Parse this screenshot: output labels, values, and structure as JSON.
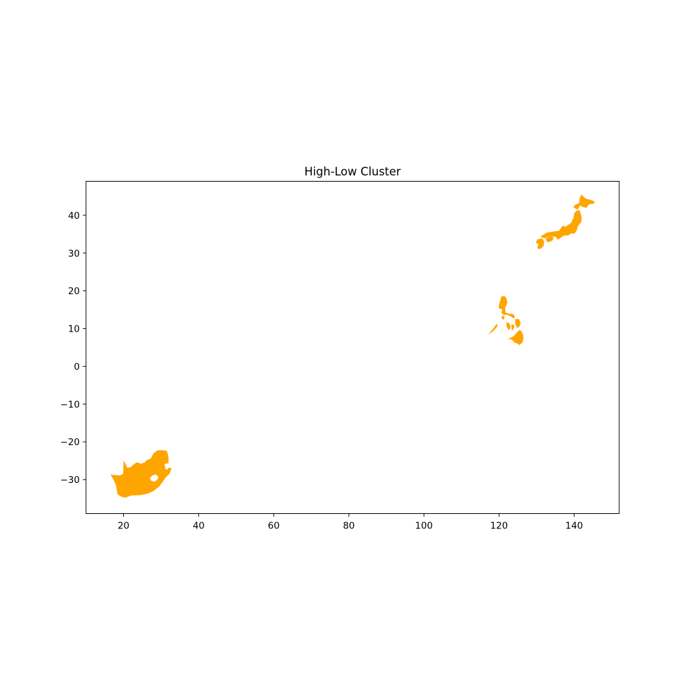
{
  "chart_data": {
    "type": "map",
    "title": "High-Low Cluster",
    "xlabel": "",
    "ylabel": "",
    "xlim": [
      10,
      152
    ],
    "ylim": [
      -39,
      49
    ],
    "xticks": [
      20,
      40,
      60,
      80,
      100,
      120,
      140
    ],
    "yticks": [
      -30,
      -20,
      -10,
      0,
      10,
      20,
      30,
      40
    ],
    "grid": false,
    "fill_color": "#FFA500",
    "regions": [
      {
        "name": "South Africa",
        "rings": [
          [
            [
              16.5,
              -28.6
            ],
            [
              17.2,
              -29.8
            ],
            [
              18.0,
              -31.5
            ],
            [
              18.2,
              -32.8
            ],
            [
              18.4,
              -33.9
            ],
            [
              19.5,
              -34.6
            ],
            [
              20.5,
              -34.8
            ],
            [
              22.0,
              -34.2
            ],
            [
              24.5,
              -34.1
            ],
            [
              26.5,
              -33.7
            ],
            [
              28.0,
              -33.0
            ],
            [
              29.5,
              -31.8
            ],
            [
              30.5,
              -30.5
            ],
            [
              31.3,
              -29.3
            ],
            [
              32.2,
              -28.5
            ],
            [
              32.8,
              -27.0
            ],
            [
              32.0,
              -26.8
            ],
            [
              31.8,
              -27.3
            ],
            [
              31.2,
              -27.3
            ],
            [
              30.9,
              -26.0
            ],
            [
              31.5,
              -25.6
            ],
            [
              31.9,
              -25.9
            ],
            [
              32.0,
              -24.3
            ],
            [
              31.6,
              -22.5
            ],
            [
              31.0,
              -22.3
            ],
            [
              30.0,
              -22.2
            ],
            [
              29.0,
              -22.3
            ],
            [
              28.0,
              -23.0
            ],
            [
              27.2,
              -24.5
            ],
            [
              26.2,
              -24.8
            ],
            [
              25.6,
              -25.5
            ],
            [
              24.6,
              -25.8
            ],
            [
              23.5,
              -25.4
            ],
            [
              22.7,
              -26.0
            ],
            [
              21.7,
              -26.8
            ],
            [
              20.9,
              -26.8
            ],
            [
              20.6,
              -26.0
            ],
            [
              20.0,
              -24.9
            ],
            [
              19.9,
              -28.5
            ],
            [
              19.0,
              -28.9
            ],
            [
              18.2,
              -28.8
            ],
            [
              17.4,
              -28.8
            ],
            [
              16.5,
              -28.6
            ]
          ],
          [
            [
              27.0,
              -29.6
            ],
            [
              27.7,
              -28.9
            ],
            [
              28.6,
              -28.6
            ],
            [
              29.3,
              -29.3
            ],
            [
              29.0,
              -30.0
            ],
            [
              28.2,
              -30.6
            ],
            [
              27.4,
              -30.3
            ],
            [
              27.0,
              -29.6
            ]
          ]
        ]
      },
      {
        "name": "Philippines",
        "rings": [
          [
            [
              120.6,
              18.5
            ],
            [
              121.4,
              18.6
            ],
            [
              121.9,
              18.2
            ],
            [
              122.2,
              17.0
            ],
            [
              122.0,
              16.2
            ],
            [
              121.6,
              15.5
            ],
            [
              121.7,
              14.3
            ],
            [
              122.4,
              14.0
            ],
            [
              123.9,
              13.8
            ],
            [
              124.2,
              13.0
            ],
            [
              123.9,
              12.7
            ],
            [
              122.8,
              13.4
            ],
            [
              122.0,
              13.7
            ],
            [
              121.2,
              13.6
            ],
            [
              120.6,
              14.2
            ],
            [
              120.9,
              15.0
            ],
            [
              119.9,
              15.4
            ],
            [
              120.0,
              16.4
            ],
            [
              120.4,
              17.6
            ],
            [
              120.6,
              18.5
            ]
          ],
          [
            [
              121.9,
              7.0
            ],
            [
              122.7,
              7.4
            ],
            [
              123.6,
              7.8
            ],
            [
              124.1,
              8.2
            ],
            [
              124.7,
              8.9
            ],
            [
              125.4,
              9.6
            ],
            [
              125.9,
              9.4
            ],
            [
              126.4,
              8.4
            ],
            [
              126.5,
              7.2
            ],
            [
              126.2,
              6.3
            ],
            [
              125.4,
              5.6
            ],
            [
              125.0,
              6.0
            ],
            [
              124.2,
              6.2
            ],
            [
              123.6,
              6.9
            ],
            [
              122.8,
              7.3
            ],
            [
              121.9,
              7.0
            ]
          ],
          [
            [
              124.3,
              12.5
            ],
            [
              125.3,
              12.5
            ],
            [
              125.8,
              11.3
            ],
            [
              125.2,
              10.3
            ],
            [
              124.8,
              10.2
            ],
            [
              124.3,
              11.3
            ],
            [
              124.3,
              12.5
            ]
          ],
          [
            [
              122.0,
              11.7
            ],
            [
              122.6,
              11.5
            ],
            [
              123.0,
              10.9
            ],
            [
              123.0,
              10.0
            ],
            [
              122.5,
              9.6
            ],
            [
              122.0,
              10.5
            ],
            [
              122.0,
              11.7
            ]
          ],
          [
            [
              123.3,
              11.1
            ],
            [
              124.0,
              11.0
            ],
            [
              124.0,
              10.2
            ],
            [
              123.5,
              9.4
            ],
            [
              123.3,
              10.2
            ],
            [
              123.3,
              11.1
            ]
          ],
          [
            [
              120.8,
              13.5
            ],
            [
              121.5,
              13.1
            ],
            [
              121.2,
              12.3
            ],
            [
              120.7,
              12.7
            ],
            [
              120.8,
              13.5
            ]
          ],
          [
            [
              117.2,
              8.4
            ],
            [
              118.5,
              9.4
            ],
            [
              119.6,
              10.6
            ],
            [
              119.4,
              11.3
            ],
            [
              118.6,
              10.2
            ],
            [
              117.4,
              8.8
            ],
            [
              117.2,
              8.4
            ]
          ]
        ]
      },
      {
        "name": "Japan",
        "rings": [
          [
            [
              141.9,
              45.5
            ],
            [
              141.5,
              44.6
            ],
            [
              141.3,
              43.2
            ],
            [
              140.3,
              42.8
            ],
            [
              139.8,
              42.1
            ],
            [
              140.9,
              41.5
            ],
            [
              141.6,
              42.6
            ],
            [
              142.5,
              42.1
            ],
            [
              143.3,
              42.0
            ],
            [
              143.9,
              42.9
            ],
            [
              145.0,
              43.0
            ],
            [
              145.5,
              43.3
            ],
            [
              145.2,
              43.8
            ],
            [
              144.2,
              44.1
            ],
            [
              143.0,
              44.5
            ],
            [
              141.9,
              45.5
            ]
          ],
          [
            [
              141.4,
              41.4
            ],
            [
              142.0,
              39.7
            ],
            [
              141.9,
              38.2
            ],
            [
              141.0,
              37.1
            ],
            [
              140.6,
              35.8
            ],
            [
              140.0,
              35.1
            ],
            [
              139.2,
              35.2
            ],
            [
              138.5,
              34.7
            ],
            [
              137.2,
              34.6
            ],
            [
              136.8,
              34.3
            ],
            [
              135.6,
              33.5
            ],
            [
              135.1,
              34.3
            ],
            [
              133.3,
              34.4
            ],
            [
              132.1,
              33.9
            ],
            [
              131.0,
              34.3
            ],
            [
              131.4,
              34.6
            ],
            [
              132.7,
              35.4
            ],
            [
              134.5,
              35.7
            ],
            [
              136.0,
              35.9
            ],
            [
              136.9,
              37.2
            ],
            [
              137.8,
              37.0
            ],
            [
              139.2,
              38.0
            ],
            [
              139.9,
              39.5
            ],
            [
              140.0,
              40.5
            ],
            [
              140.6,
              41.2
            ],
            [
              141.4,
              41.4
            ]
          ],
          [
            [
              130.2,
              33.6
            ],
            [
              131.5,
              33.9
            ],
            [
              132.0,
              33.1
            ],
            [
              131.9,
              32.0
            ],
            [
              131.4,
              31.4
            ],
            [
              130.7,
              31.0
            ],
            [
              130.2,
              31.4
            ],
            [
              130.5,
              32.3
            ],
            [
              129.8,
              32.8
            ],
            [
              130.2,
              33.6
            ]
          ],
          [
            [
              132.5,
              34.0
            ],
            [
              133.6,
              34.4
            ],
            [
              134.6,
              34.1
            ],
            [
              134.2,
              33.3
            ],
            [
              133.0,
              32.8
            ],
            [
              132.5,
              33.4
            ],
            [
              132.5,
              34.0
            ]
          ]
        ]
      }
    ]
  }
}
